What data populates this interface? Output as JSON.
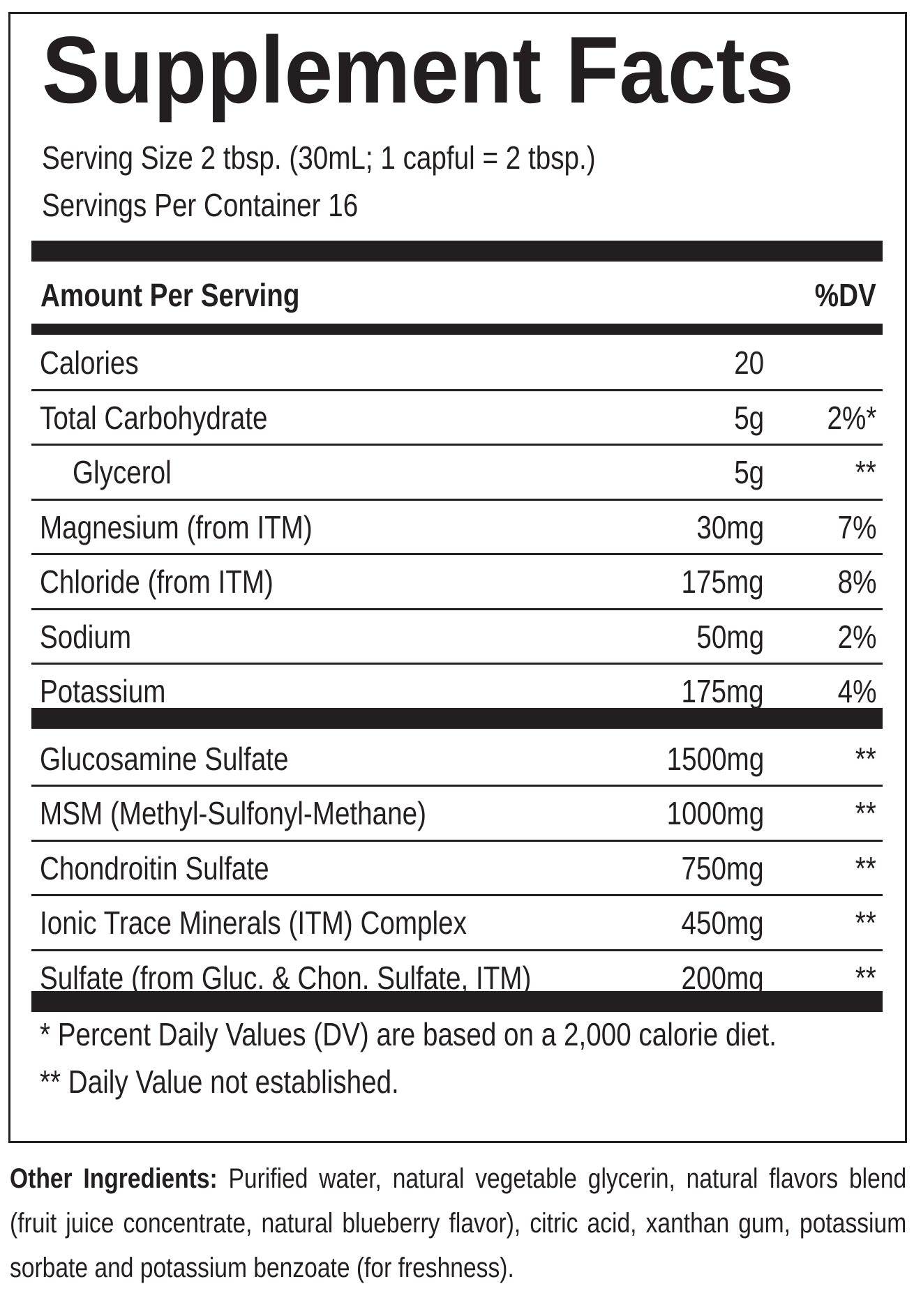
{
  "header": {
    "title": "Supplement Facts",
    "serving_size": "Serving Size 2 tbsp. (30mL; 1 capful = 2 tbsp.)",
    "servings_per_container": "Servings Per Container 16"
  },
  "table": {
    "header": {
      "label": "Amount Per Serving",
      "dv_label": "%DV"
    },
    "sections": [
      {
        "rows": [
          {
            "name": "Calories",
            "amount": "20"
          },
          {
            "name": "Total Carbohydrate",
            "amount": "5g",
            "dv": "2%*"
          },
          {
            "name": "Glycerol",
            "amount": "5g",
            "dv": "**"
          },
          {
            "name": "Magnesium (from ITM)",
            "amount": "30mg",
            "dv": "7%"
          },
          {
            "name": "Chloride (from ITM)",
            "amount": "175mg",
            "dv": "8%"
          },
          {
            "name": "Sodium",
            "amount": "50mg",
            "dv": "2%"
          },
          {
            "name": "Potassium",
            "amount": "175mg",
            "dv": "4%"
          }
        ]
      },
      {
        "rows": [
          {
            "name": "Glucosamine Sulfate",
            "amount": "1500mg",
            "dv": "**"
          },
          {
            "name": "MSM (Methyl-Sulfonyl-Methane)",
            "amount": "1000mg",
            "dv": "**"
          },
          {
            "name": "Chondroitin Sulfate",
            "amount": "750mg",
            "dv": "**"
          },
          {
            "name": "Ionic Trace Minerals (ITM) Complex",
            "amount": "450mg",
            "dv": "**"
          },
          {
            "name": "Sulfate (from Gluc. & Chon. Sulfate, ITM)",
            "amount": "200mg",
            "dv": "**"
          }
        ]
      }
    ]
  },
  "footnotes": [
    "* Percent Daily Values (DV) are based on a 2,000 calorie diet.",
    "** Daily Value not established."
  ],
  "other_ingredients": {
    "label": "Other Ingredients:",
    "text": "Purified water, natural vegetable glycerin, natural flavors blend (fruit juice concentrate, natural blueberry flavor), citric acid, xanthan gum, potassium sorbate and potassium benzoate (for freshness)."
  }
}
